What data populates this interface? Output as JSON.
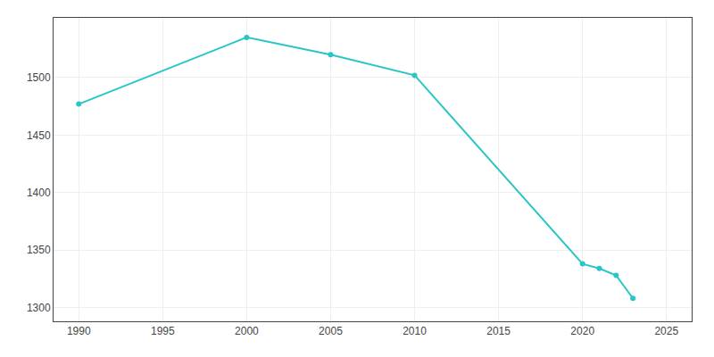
{
  "chart_data": {
    "type": "line",
    "x": [
      1990,
      2000,
      2005,
      2010,
      2020,
      2021,
      2022,
      2023
    ],
    "values": [
      1477,
      1535,
      1520,
      1502,
      1338,
      1334,
      1328,
      1308
    ],
    "color": "#2ac5c5",
    "marker": "circle",
    "xlim": [
      1988.5,
      2026.5
    ],
    "ylim": [
      1288,
      1552
    ],
    "xticks": [
      1990,
      1995,
      2000,
      2005,
      2010,
      2015,
      2020,
      2025
    ],
    "yticks": [
      1300,
      1350,
      1400,
      1450,
      1500
    ],
    "grid": true
  }
}
